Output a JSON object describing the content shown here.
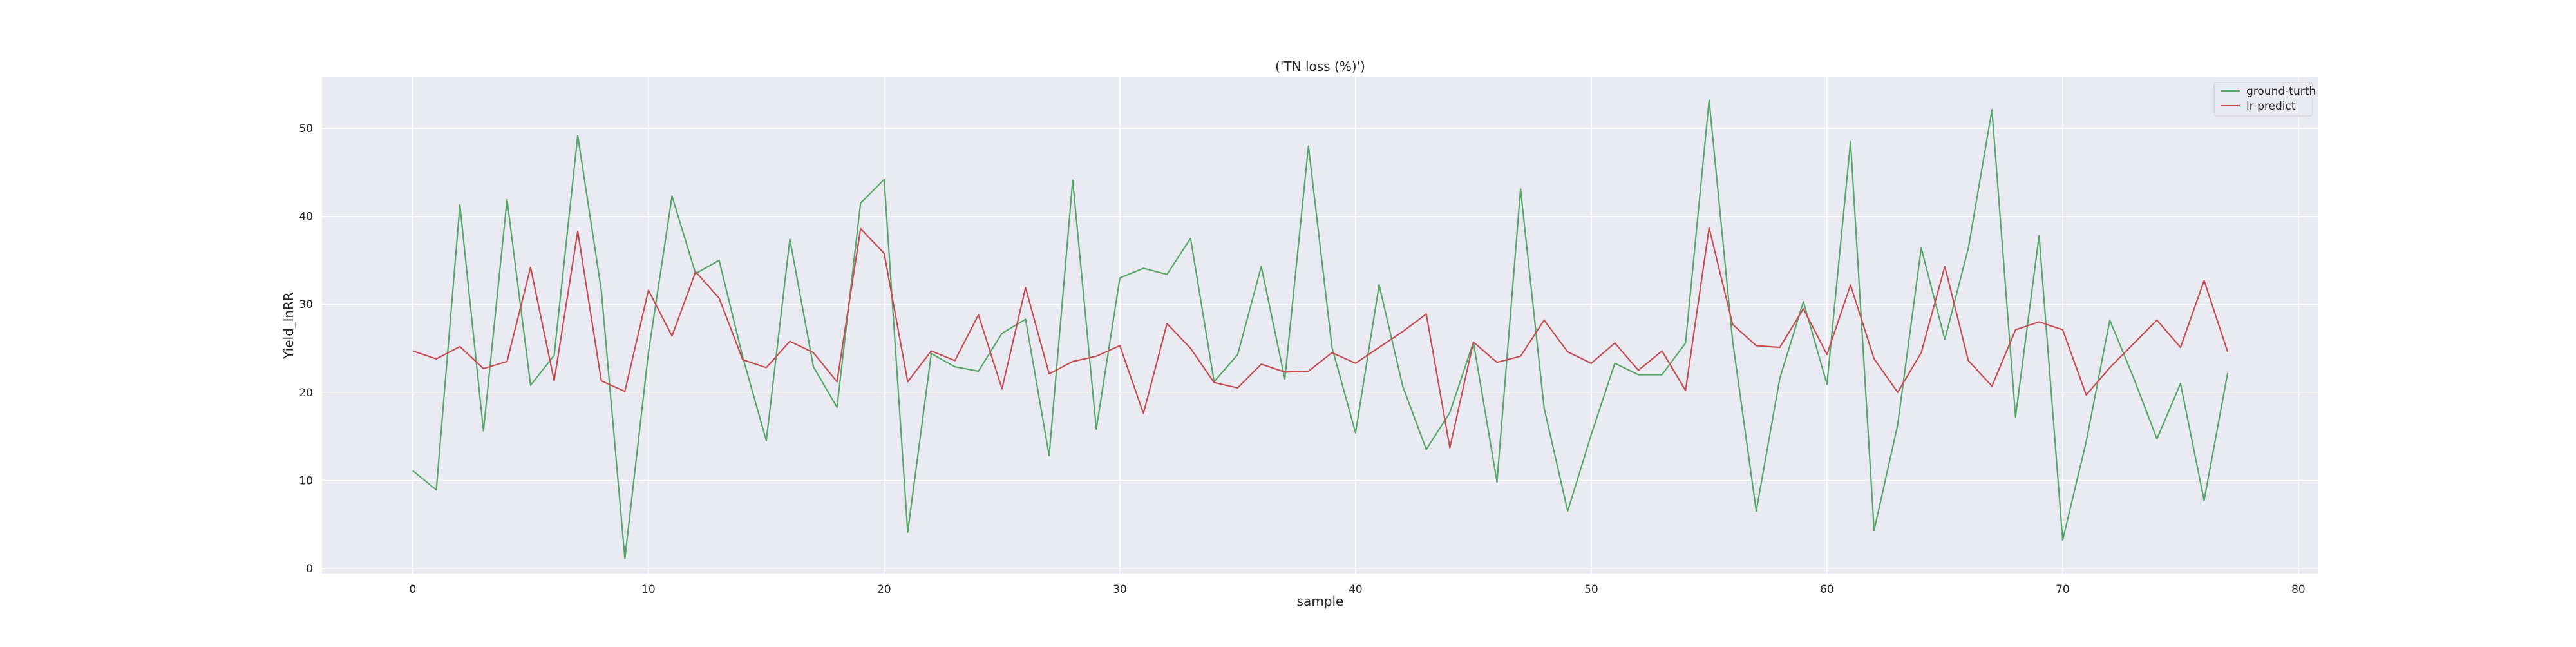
{
  "chart_data": {
    "type": "line",
    "title": "('TN loss (%)')",
    "xlabel": "sample",
    "ylabel": "Yield_lnRR",
    "xlim": [
      -3.85,
      80.85
    ],
    "ylim": [
      -0.6,
      55.8
    ],
    "xticks": [
      0,
      10,
      20,
      30,
      40,
      50,
      60,
      70,
      80
    ],
    "yticks": [
      0,
      10,
      20,
      30,
      40,
      50
    ],
    "grid": true,
    "legend_position": "top-right",
    "x": [
      0,
      1,
      2,
      3,
      4,
      5,
      6,
      7,
      8,
      9,
      10,
      11,
      12,
      13,
      14,
      15,
      16,
      17,
      18,
      19,
      20,
      21,
      22,
      23,
      24,
      25,
      26,
      27,
      28,
      29,
      30,
      31,
      32,
      33,
      34,
      35,
      36,
      37,
      38,
      39,
      40,
      41,
      42,
      43,
      44,
      45,
      46,
      47,
      48,
      49,
      50,
      51,
      52,
      53,
      54,
      55,
      56,
      57,
      58,
      59,
      60,
      61,
      62,
      63,
      64,
      65,
      66,
      67,
      68,
      69,
      70,
      71,
      72,
      73,
      74,
      75,
      76,
      77
    ],
    "series": [
      {
        "name": "ground-turth",
        "color": "#55a868",
        "values": [
          11.1,
          8.9,
          41.3,
          15.6,
          41.9,
          20.8,
          24.2,
          49.2,
          31.6,
          1.1,
          24.5,
          42.3,
          33.5,
          35.0,
          24.0,
          14.5,
          37.4,
          22.9,
          18.3,
          41.5,
          44.2,
          4.1,
          24.4,
          22.9,
          22.4,
          26.7,
          28.3,
          12.8,
          44.1,
          15.8,
          33.0,
          34.1,
          33.4,
          37.5,
          21.2,
          24.3,
          34.3,
          21.5,
          48.0,
          25.1,
          15.4,
          32.2,
          20.7,
          13.5,
          17.7,
          25.7,
          9.8,
          43.1,
          18.2,
          6.5,
          15.2,
          23.3,
          22.0,
          22.0,
          25.6,
          53.2,
          25.8,
          6.5,
          21.6,
          30.3,
          20.9,
          48.5,
          4.3,
          16.3,
          36.4,
          26.0,
          36.4,
          52.1,
          17.2,
          37.8,
          3.2,
          14.4,
          28.2,
          21.7,
          14.7,
          21.0,
          7.7,
          22.2
        ]
      },
      {
        "name": "lr predict",
        "color": "#c44e52",
        "values": [
          24.7,
          23.8,
          25.2,
          22.7,
          23.5,
          34.2,
          21.3,
          38.3,
          21.3,
          20.1,
          31.6,
          26.4,
          33.7,
          30.7,
          23.7,
          22.8,
          25.8,
          24.5,
          21.2,
          38.6,
          35.8,
          21.2,
          24.7,
          23.6,
          28.8,
          20.4,
          31.9,
          22.1,
          23.5,
          24.1,
          25.3,
          17.6,
          27.8,
          25.0,
          21.1,
          20.5,
          23.2,
          22.3,
          22.4,
          24.5,
          23.3,
          25.1,
          26.9,
          28.9,
          13.7,
          25.7,
          23.4,
          24.1,
          28.2,
          24.6,
          23.3,
          25.6,
          22.5,
          24.7,
          20.2,
          38.7,
          27.7,
          25.3,
          25.1,
          29.5,
          24.3,
          32.2,
          23.8,
          20.0,
          24.5,
          34.3,
          23.6,
          20.7,
          27.1,
          28.0,
          27.1,
          19.7,
          22.8,
          25.5,
          28.2,
          25.1,
          32.7,
          24.6
        ]
      }
    ]
  }
}
